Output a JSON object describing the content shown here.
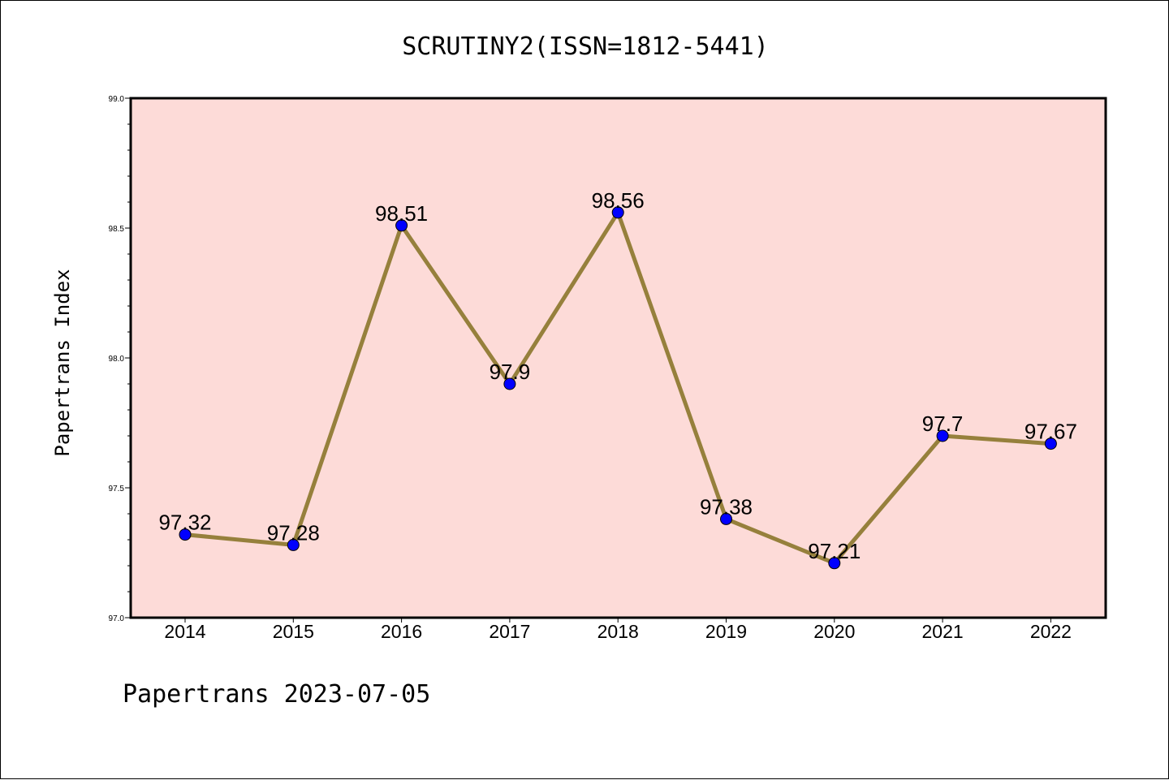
{
  "chart_data": {
    "type": "line",
    "title": "SCRUTINY2(ISSN=1812-5441)",
    "xlabel": "",
    "ylabel": "Papertrans Index",
    "footer": "Papertrans 2023-07-05",
    "categories": [
      "2014",
      "2015",
      "2016",
      "2017",
      "2018",
      "2019",
      "2020",
      "2021",
      "2022"
    ],
    "values": [
      97.32,
      97.28,
      98.51,
      97.9,
      98.56,
      97.38,
      97.21,
      97.7,
      97.67
    ],
    "value_labels": [
      "97.32",
      "97.28",
      "98.51",
      "97.9",
      "98.56",
      "97.38",
      "97.21",
      "97.7",
      "97.67"
    ],
    "ylim": [
      97.0,
      99.0
    ],
    "yticks": [
      "97.0",
      "97.5",
      "98.0",
      "98.5",
      "99.0"
    ],
    "grid": false,
    "colors": {
      "plot_background": "#fddbd8",
      "line": "#96803c",
      "marker": "#0000ff"
    }
  }
}
